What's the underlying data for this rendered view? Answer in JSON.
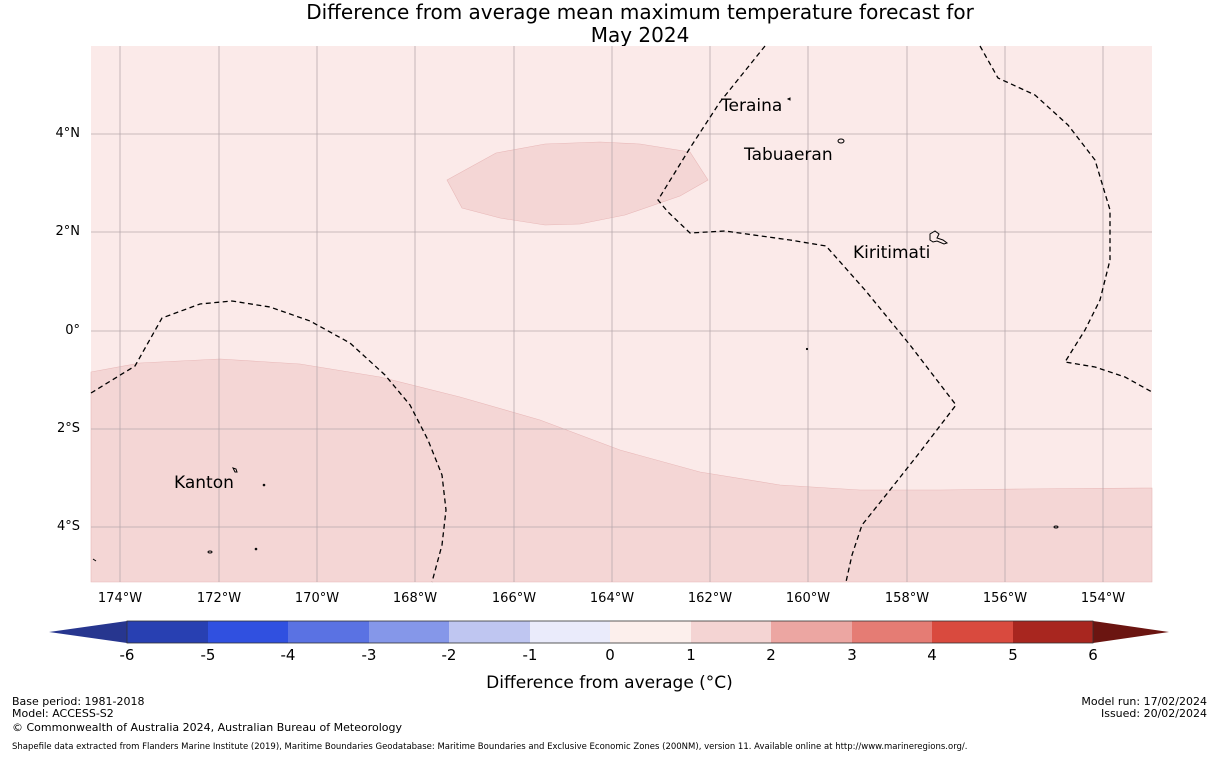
{
  "title": {
    "line1": "Difference from average mean maximum temperature forecast for",
    "line2": "May 2024"
  },
  "map": {
    "y_axis_labels": [
      "4°N",
      "2°N",
      "0°",
      "2°S",
      "4°S"
    ],
    "x_axis_labels": [
      "174°W",
      "172°W",
      "170°W",
      "168°W",
      "166°W",
      "164°W",
      "162°W",
      "160°W",
      "158°W",
      "156°W",
      "154°W"
    ],
    "places": [
      {
        "name": "Teraina"
      },
      {
        "name": "Tabuaeran"
      },
      {
        "name": "Kiritimati"
      },
      {
        "name": "Kanton"
      }
    ],
    "anomaly_colors": {
      "background": "#fbeae9",
      "warmer": "#f4d6d5"
    }
  },
  "colorbar": {
    "ticks": [
      "-6",
      "-5",
      "-4",
      "-3",
      "-2",
      "-1",
      "0",
      "1",
      "2",
      "3",
      "4",
      "5",
      "6"
    ],
    "colors": [
      "#27368f",
      "#2840b2",
      "#3050e0",
      "#5a72e3",
      "#8597e9",
      "#bfc6f1",
      "#eaebfb",
      "#fcefec",
      "#f4d4d3",
      "#eca6a2",
      "#e57c74",
      "#d94a3e",
      "#a8261f",
      "#6b1511"
    ],
    "label": "Difference from average (°C)"
  },
  "footer": {
    "base_period": "Base period: 1981-2018",
    "model": "Model: ACCESS-S2",
    "copyright": "© Commonwealth of Australia 2024, Australian Bureau of Meteorology",
    "model_run": "Model run: 17/02/2024",
    "issued": "Issued: 20/02/2024",
    "source": "Shapefile data extracted from Flanders Marine Institute (2019), Maritime Boundaries Geodatabase: Maritime Boundaries and Exclusive Economic Zones (200NM), version 11. Available online at http://www.marineregions.org/."
  }
}
